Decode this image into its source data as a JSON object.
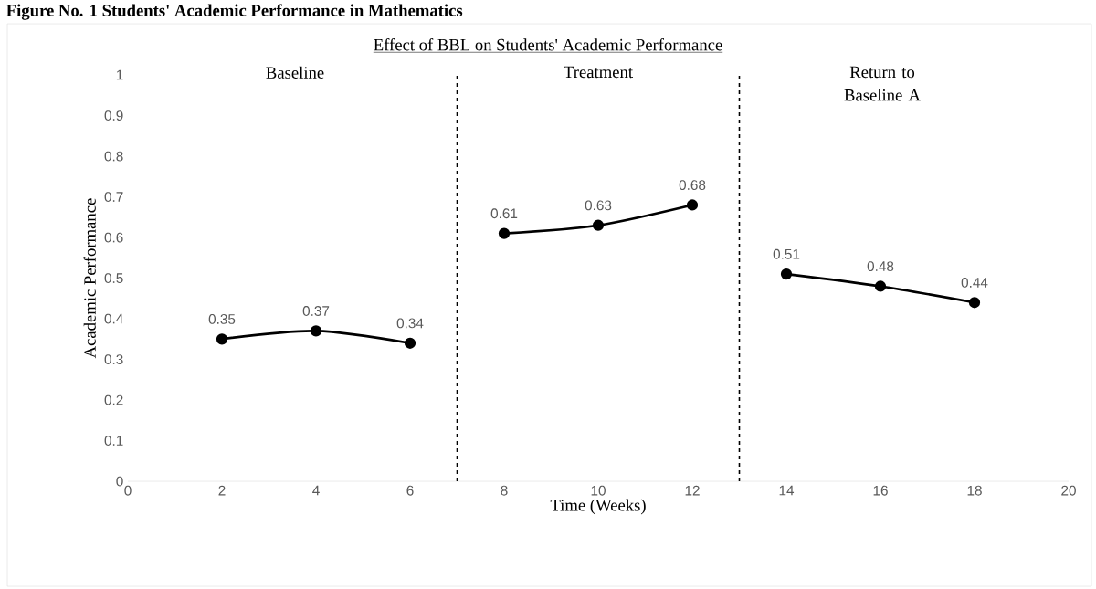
{
  "chart_data": {
    "type": "line",
    "title": "Figure No. 1 Students' Academic Performance in Mathematics",
    "subtitle": "Effect of BBL on Students' Academic Performance",
    "xlabel": "Time (Weeks)",
    "ylabel": "Academic Performance",
    "series": [
      {
        "color": "#000000",
        "x": [
          2,
          4,
          6
        ],
        "values": [
          0.35,
          0.37,
          0.34
        ]
      },
      {
        "color": "#000000",
        "x": [
          8,
          10,
          12
        ],
        "values": [
          0.61,
          0.63,
          0.68
        ]
      },
      {
        "color": "#000000",
        "x": [
          14,
          16,
          18
        ],
        "values": [
          0.51,
          0.48,
          0.44
        ]
      }
    ],
    "xlim": [
      0,
      20
    ],
    "xticks": [
      0,
      2,
      4,
      6,
      8,
      10,
      12,
      14,
      16,
      18,
      20
    ],
    "ylim": [
      0,
      1
    ],
    "yticks": [
      0,
      0.1,
      0.2,
      0.3,
      0.4,
      0.5,
      0.6,
      0.7,
      0.8,
      0.9,
      1
    ],
    "ref_lines": [
      {
        "axis": "x",
        "value": 7,
        "line_style": "dashed",
        "color": "#000000"
      },
      {
        "axis": "x",
        "value": 13,
        "line_style": "dashed",
        "color": "#000000"
      }
    ],
    "annotations": [
      "Baseline",
      "Treatment",
      "Return to Baseline A"
    ],
    "data_labels": true,
    "marker": "circle",
    "line_style": "solid"
  }
}
